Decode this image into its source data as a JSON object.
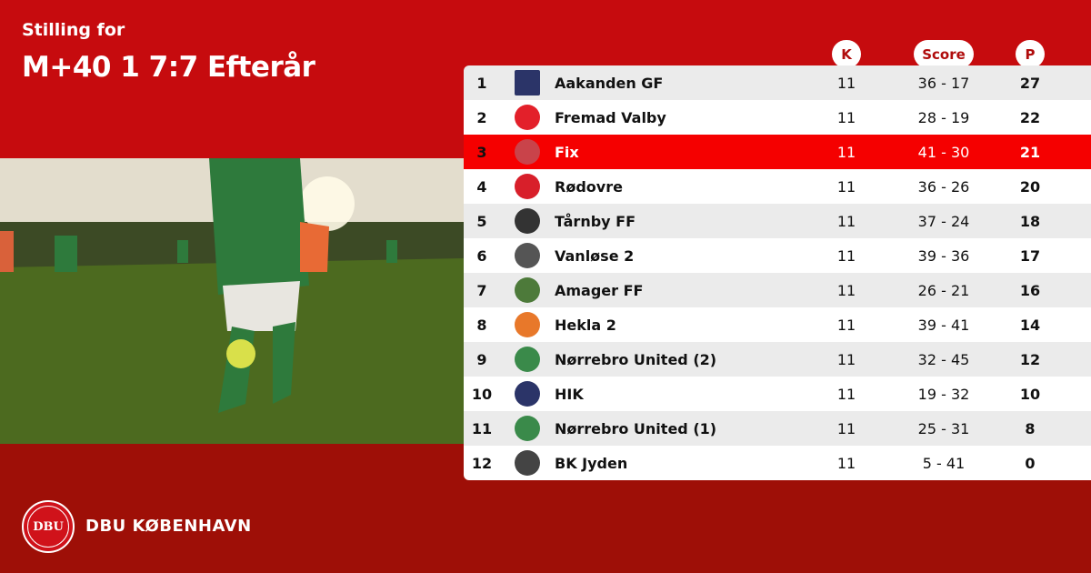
{
  "header": {
    "subtitle": "Stilling for",
    "title": "M+40 1 7:7 Efterår"
  },
  "columns": {
    "k": "K",
    "score": "Score",
    "p": "P"
  },
  "colors": {
    "top": "#c60b0e",
    "bottom": "#9e0f07",
    "highlight": "#f50000"
  },
  "rows": [
    {
      "rank": "1",
      "team": "Aakanden GF",
      "k": "11",
      "score": "36 - 17",
      "p": "27",
      "logo_color": "#2b3468"
    },
    {
      "rank": "2",
      "team": "Fremad Valby",
      "k": "11",
      "score": "28 - 19",
      "p": "22",
      "logo_color": "#e3202a"
    },
    {
      "rank": "3",
      "team": "Fix",
      "k": "11",
      "score": "41 - 30",
      "p": "21",
      "logo_color": "#c9434a",
      "highlighted": true
    },
    {
      "rank": "4",
      "team": "Rødovre",
      "k": "11",
      "score": "36 - 26",
      "p": "20",
      "logo_color": "#d81f2a"
    },
    {
      "rank": "5",
      "team": "Tårnby FF",
      "k": "11",
      "score": "37 - 24",
      "p": "18",
      "logo_color": "#333333"
    },
    {
      "rank": "6",
      "team": "Vanløse 2",
      "k": "11",
      "score": "39 - 36",
      "p": "17",
      "logo_color": "#555555"
    },
    {
      "rank": "7",
      "team": "Amager FF",
      "k": "11",
      "score": "26 - 21",
      "p": "16",
      "logo_color": "#4d7a3a"
    },
    {
      "rank": "8",
      "team": "Hekla 2",
      "k": "11",
      "score": "39 - 41",
      "p": "14",
      "logo_color": "#e8782a"
    },
    {
      "rank": "9",
      "team": "Nørrebro United (2)",
      "k": "11",
      "score": "32 - 45",
      "p": "12",
      "logo_color": "#3a8a4a"
    },
    {
      "rank": "10",
      "team": "HIK",
      "k": "11",
      "score": "19 - 32",
      "p": "10",
      "logo_color": "#2b3468"
    },
    {
      "rank": "11",
      "team": "Nørrebro United (1)",
      "k": "11",
      "score": "25 - 31",
      "p": "8",
      "logo_color": "#3a8a4a"
    },
    {
      "rank": "12",
      "team": "BK Jyden",
      "k": "11",
      "score": "5 - 41",
      "p": "0",
      "logo_color": "#444444"
    }
  ],
  "footer": {
    "brand": "DBU KØBENHAVN",
    "seal_text": "DBU"
  }
}
